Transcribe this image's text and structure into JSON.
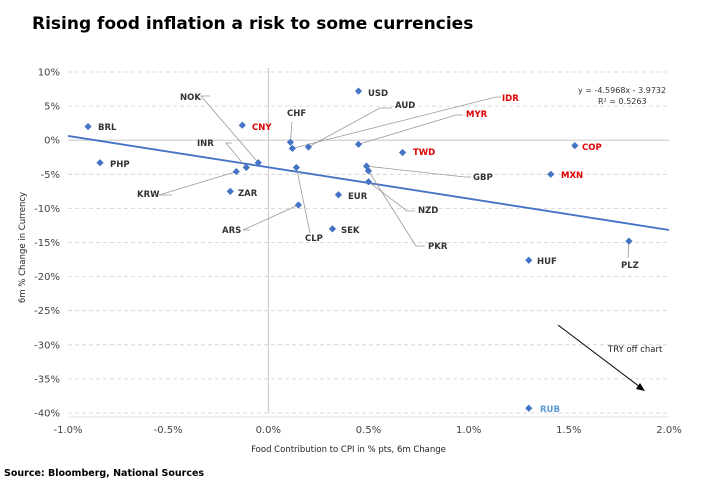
{
  "title": "Rising food inflation a risk to some currencies",
  "source": "Source:  Bloomberg, National Sources",
  "colors": {
    "marker": "#4472C4",
    "trendline": "#4472C4",
    "label_default": "#333333",
    "label_red": "#E00000",
    "label_blue": "#5B9BD5",
    "leader": "#9a9a9a",
    "grid": "#d0d0d0"
  },
  "chart_data": {
    "type": "scatter",
    "title": "Rising food inflation a risk to some currencies",
    "xlabel": "Food Contribution to CPI in % pts, 6m Change",
    "ylabel": "6m % Change in Currency",
    "xlim": [
      -1.0,
      2.0
    ],
    "ylim": [
      -40,
      10
    ],
    "x_ticks": [
      -1.0,
      -0.5,
      0.0,
      0.5,
      1.0,
      1.5,
      2.0
    ],
    "x_tick_labels": [
      "-1.0%",
      "-0.5%",
      "0.0%",
      "0.5%",
      "1.0%",
      "1.5%",
      "2.0%"
    ],
    "y_ticks": [
      10,
      5,
      0,
      -5,
      -10,
      -15,
      -20,
      -25,
      -30,
      -35,
      -40
    ],
    "y_tick_labels": [
      "10%",
      "5%",
      "0%",
      "-5%",
      "-10%",
      "-15%",
      "-20%",
      "-25%",
      "-30%",
      "-35%",
      "-40%"
    ],
    "grid": "horizontal dashed",
    "trendline": {
      "equation": "y = -4.5968x - 3.9732",
      "r_squared": "R² = 0.5263",
      "slope": -4.5968,
      "intercept": -3.9732
    },
    "points": [
      {
        "label": "BRL",
        "x": -0.9,
        "y": 2.0,
        "color": "default"
      },
      {
        "label": "PHP",
        "x": -0.84,
        "y": -3.3,
        "color": "default"
      },
      {
        "label": "CNY",
        "x": -0.13,
        "y": 2.2,
        "color": "red"
      },
      {
        "label": "NOK",
        "x": -0.05,
        "y": -3.3,
        "color": "default"
      },
      {
        "label": "INR",
        "x": -0.11,
        "y": -4.0,
        "color": "default"
      },
      {
        "label": "KRW",
        "x": -0.16,
        "y": -4.6,
        "color": "default"
      },
      {
        "label": "ZAR",
        "x": -0.19,
        "y": -7.5,
        "color": "default"
      },
      {
        "label": "CHF",
        "x": 0.11,
        "y": -0.3,
        "color": "default"
      },
      {
        "label": "ARS",
        "x": 0.15,
        "y": -9.5,
        "color": "default"
      },
      {
        "label": "CLP",
        "x": 0.14,
        "y": -4.0,
        "color": "default"
      },
      {
        "label": "USD",
        "x": 0.45,
        "y": 7.2,
        "color": "default"
      },
      {
        "label": "AUD",
        "x": 0.2,
        "y": -1.0,
        "color": "default"
      },
      {
        "label": "IDR",
        "x": 0.12,
        "y": -1.2,
        "color": "red"
      },
      {
        "label": "MYR",
        "x": 0.45,
        "y": -0.6,
        "color": "red"
      },
      {
        "label": "TWD",
        "x": 0.67,
        "y": -1.8,
        "color": "red"
      },
      {
        "label": "GBP",
        "x": 0.49,
        "y": -3.8,
        "color": "default"
      },
      {
        "label": "EUR",
        "x": 0.35,
        "y": -8.0,
        "color": "default"
      },
      {
        "label": "NZD",
        "x": 0.5,
        "y": -6.1,
        "color": "default"
      },
      {
        "label": "PKR",
        "x": 0.5,
        "y": -4.5,
        "color": "default"
      },
      {
        "label": "SEK",
        "x": 0.32,
        "y": -13.0,
        "color": "default"
      },
      {
        "label": "COP",
        "x": 1.53,
        "y": -0.8,
        "color": "red"
      },
      {
        "label": "MXN",
        "x": 1.41,
        "y": -5.0,
        "color": "red"
      },
      {
        "label": "HUF",
        "x": 1.3,
        "y": -17.6,
        "color": "default"
      },
      {
        "label": "PLZ",
        "x": 1.8,
        "y": -14.8,
        "color": "default"
      },
      {
        "label": "RUB",
        "x": 1.3,
        "y": -39.3,
        "color": "blue"
      }
    ],
    "annotation": "TRY off chart"
  }
}
